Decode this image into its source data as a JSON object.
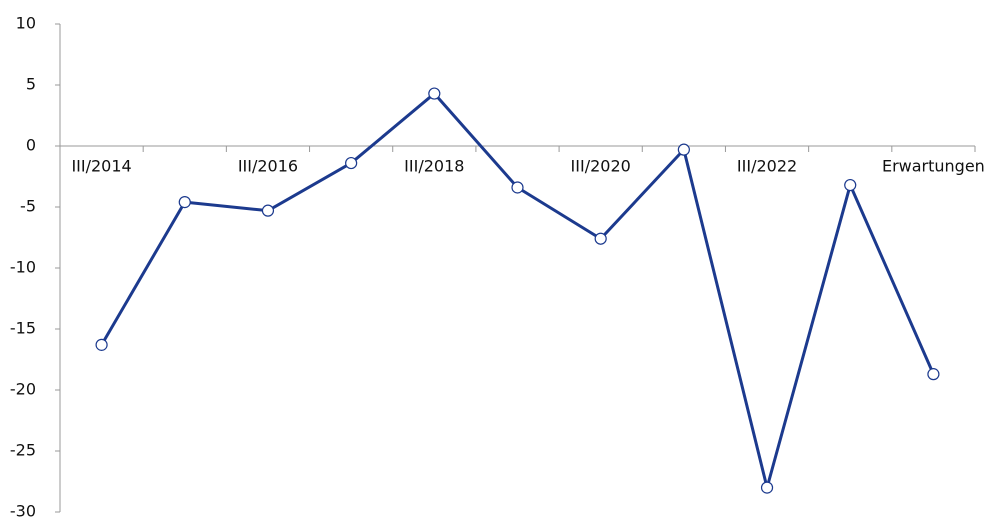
{
  "chart_data": {
    "type": "line",
    "categories": [
      "III/2014",
      null,
      "III/2016",
      null,
      "III/2018",
      null,
      "III/2020",
      null,
      "III/2022",
      null,
      "Erwartungen"
    ],
    "series": [
      {
        "color": "#1c3a8e",
        "values": [
          -16.3,
          -4.6,
          -5.3,
          -1.4,
          4.3,
          -3.4,
          -7.6,
          -0.3,
          -28.0,
          -3.2,
          -18.7
        ]
      }
    ],
    "ylim": [
      -30,
      10
    ],
    "yticks": [
      -30,
      -25,
      -20,
      -15,
      -10,
      -5,
      0,
      5,
      10
    ],
    "grid": false
  }
}
